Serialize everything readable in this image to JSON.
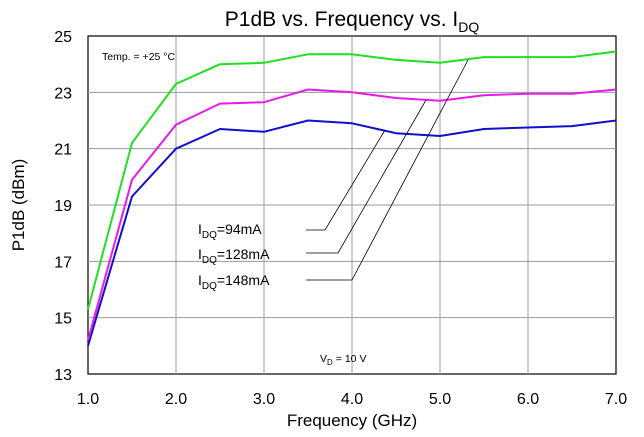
{
  "chart_data": {
    "type": "line",
    "title": "P1dB vs. Frequency vs. I",
    "title_sub": "DQ",
    "xlabel": "Frequency (GHz)",
    "ylabel": "P1dB (dBm)",
    "xlim": [
      1.0,
      7.0
    ],
    "ylim": [
      13,
      25
    ],
    "xticks": [
      "1.0",
      "2.0",
      "3.0",
      "4.0",
      "5.0",
      "6.0",
      "7.0"
    ],
    "yticks": [
      "13",
      "15",
      "17",
      "19",
      "21",
      "23",
      "25"
    ],
    "grid": true,
    "annotations": {
      "temp": "Temp. = +25 °C",
      "vd_main": "V",
      "vd_sub": "D",
      "vd_value": "= 10 V"
    },
    "x": [
      1.0,
      1.5,
      2.0,
      2.5,
      3.0,
      3.5,
      4.0,
      4.5,
      5.0,
      5.5,
      6.0,
      6.5,
      7.0
    ],
    "series": [
      {
        "name": "IDQ=94mA",
        "label_main": "I",
        "label_sub": "DQ",
        "label_value": "=94mA",
        "color": "#1010cc",
        "values": [
          14.0,
          19.3,
          21.0,
          21.7,
          21.6,
          22.0,
          21.9,
          21.55,
          21.45,
          21.7,
          21.75,
          21.8,
          22.0
        ]
      },
      {
        "name": "IDQ=128mA",
        "label_main": "I",
        "label_sub": "DQ",
        "label_value": "=128mA",
        "color": "#e81ce8",
        "values": [
          14.2,
          19.9,
          21.85,
          22.6,
          22.65,
          23.1,
          23.0,
          22.8,
          22.7,
          22.9,
          22.95,
          22.95,
          23.1
        ]
      },
      {
        "name": "IDQ=148mA",
        "label_main": "I",
        "label_sub": "DQ",
        "label_value": "=148mA",
        "color": "#20e020",
        "values": [
          15.3,
          21.2,
          23.3,
          24.0,
          24.05,
          24.35,
          24.35,
          24.15,
          24.05,
          24.25,
          24.25,
          24.25,
          24.45
        ]
      }
    ]
  }
}
